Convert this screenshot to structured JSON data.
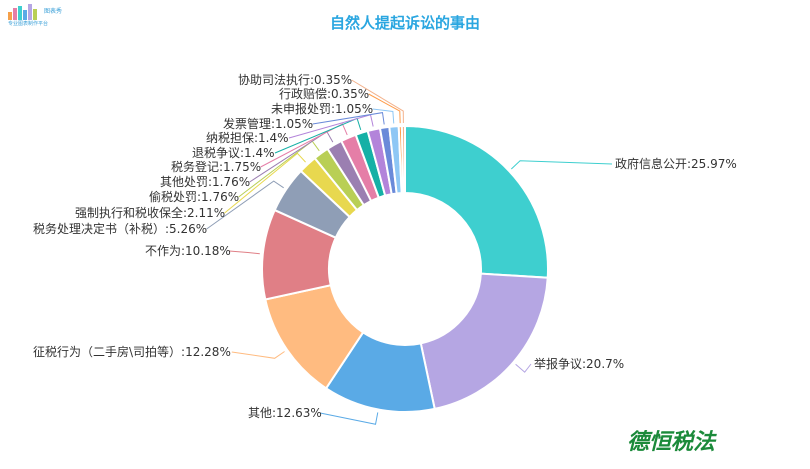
{
  "logo": {
    "name": "图表秀",
    "tagline": "专业图表制作平台"
  },
  "watermark": "德恒税法",
  "chart_data": {
    "type": "pie",
    "donut": true,
    "title": "自然人提起诉讼的事由",
    "categories": [
      "政府信息公开",
      "举报争议",
      "其他",
      "征税行为（二手房\\司拍等）",
      "不作为",
      "税务处理决定书（补税）",
      "强制执行和税收保全",
      "偷税处罚",
      "其他处罚",
      "税务登记",
      "退税争议",
      "纳税担保",
      "发票管理",
      "未申报处罚",
      "行政赔偿",
      "协助司法执行"
    ],
    "values": [
      25.97,
      20.7,
      12.63,
      12.28,
      10.18,
      5.26,
      2.11,
      1.76,
      1.76,
      1.75,
      1.4,
      1.4,
      1.05,
      1.05,
      0.35,
      0.35
    ],
    "labels": [
      "政府信息公开:25.97%",
      "举报争议:20.7%",
      "其他:12.63%",
      "征税行为（二手房\\司拍等）:12.28%",
      "不作为:10.18%",
      "税务处理决定书（补税）:5.26%",
      "强制执行和税收保全:2.11%",
      "偷税处罚:1.76%",
      "其他处罚:1.76%",
      "税务登记:1.75%",
      "退税争议:1.4%",
      "纳税担保:1.4%",
      "发票管理:1.05%",
      "未申报处罚:1.05%",
      "行政赔偿:0.35%",
      "协助司法执行:0.35%"
    ],
    "colors": [
      "#3ecfcf",
      "#b5a6e3",
      "#5aaae6",
      "#ffbb80",
      "#e07f86",
      "#8f9eb6",
      "#e8d84f",
      "#b9cf55",
      "#9b7fb1",
      "#e57ea7",
      "#16b0a6",
      "#b384da",
      "#6a8ad9",
      "#8ec7f5",
      "#ff9c4a",
      "#f3b28c"
    ]
  }
}
